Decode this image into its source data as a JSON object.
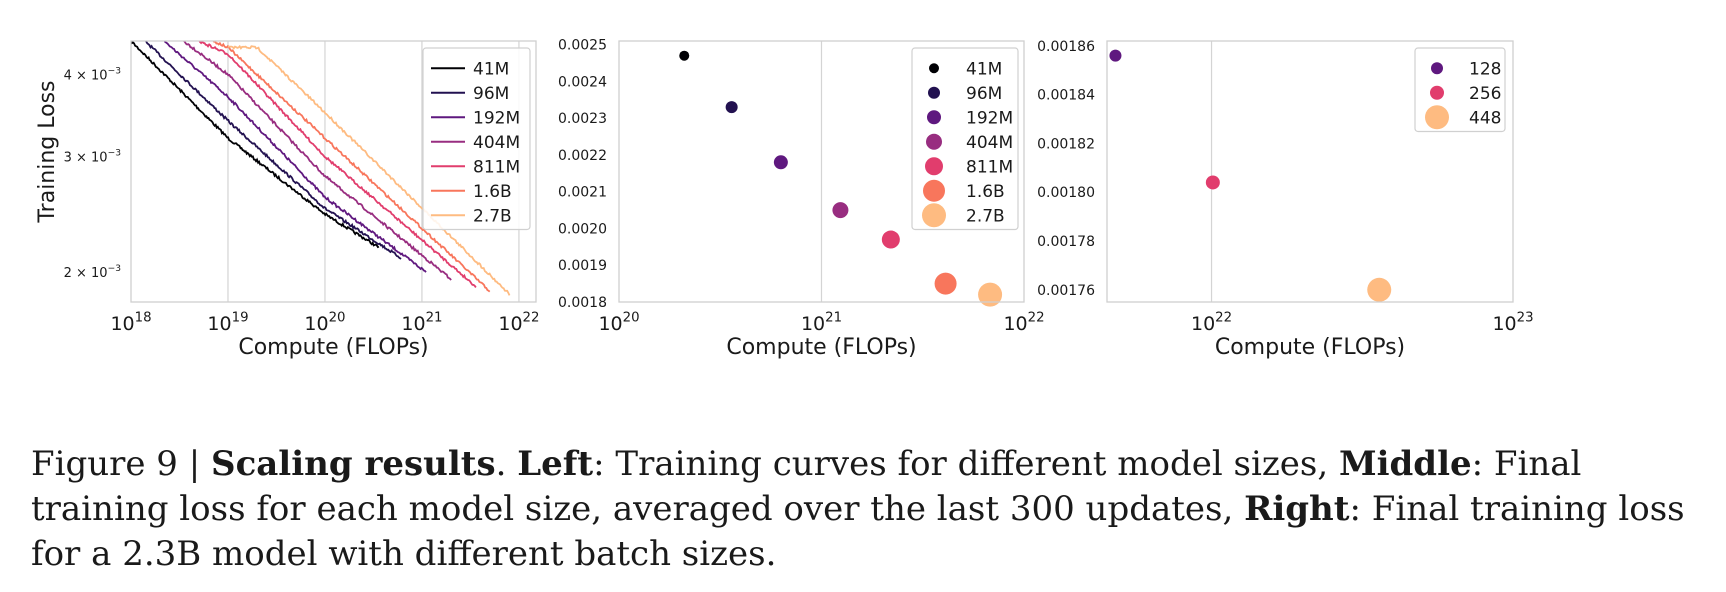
{
  "chart_data": [
    {
      "type": "line",
      "panel": "left",
      "title": "",
      "xlabel": "Compute (FLOPs)",
      "ylabel": "Training Loss",
      "xscale": "log",
      "yscale": "log",
      "xlim": [
        1e+18,
        1.5e+22
      ],
      "ylim": [
        0.0018,
        0.0045
      ],
      "xticks": [
        {
          "label": "10",
          "exp": "18",
          "value": 1e+18
        },
        {
          "label": "10",
          "exp": "19",
          "value": 1e+19
        },
        {
          "label": "10",
          "exp": "20",
          "value": 1e+20
        },
        {
          "label": "10",
          "exp": "21",
          "value": 1e+21
        },
        {
          "label": "10",
          "exp": "22",
          "value": 1e+22
        }
      ],
      "yticks": [
        {
          "label": "4 × 10",
          "exp": "−3",
          "value": 0.004
        },
        {
          "label": "3 × 10",
          "exp": "−3",
          "value": 0.003
        },
        {
          "label": "2 × 10",
          "exp": "−3",
          "value": 0.002
        }
      ],
      "grid": "x",
      "legend_position": "top-right",
      "series": [
        {
          "name": "41M",
          "color": "#000004",
          "x": [
            1e+18,
            1e+19,
            1e+20,
            3.6e+20
          ],
          "y": [
            0.0045,
            0.0032,
            0.00245,
            0.00218
          ]
        },
        {
          "name": "96M",
          "color": "#221150",
          "x": [
            1.4e+18,
            1e+19,
            1e+20,
            6.1e+20
          ],
          "y": [
            0.0045,
            0.0034,
            0.0025,
            0.0021
          ]
        },
        {
          "name": "192M",
          "color": "#5f187f",
          "x": [
            2.2e+18,
            1e+19,
            1e+20,
            1.1e+21
          ],
          "y": [
            0.0045,
            0.0037,
            0.0026,
            0.002
          ]
        },
        {
          "name": "404M",
          "color": "#982d80",
          "x": [
            3.5e+18,
            1e+19,
            1e+20,
            2e+21
          ],
          "y": [
            0.0045,
            0.004,
            0.0028,
            0.00195
          ]
        },
        {
          "name": "811M",
          "color": "#e13d6d",
          "x": [
            5e+18,
            1e+19,
            1e+20,
            3.6e+21
          ],
          "y": [
            0.0045,
            0.0043,
            0.003,
            0.0019
          ]
        },
        {
          "name": "1.6B",
          "color": "#f8765c",
          "x": [
            7e+18,
            1e+19,
            1e+20,
            5e+21
          ],
          "y": [
            0.0045,
            0.0044,
            0.0032,
            0.00187
          ]
        },
        {
          "name": "2.7B",
          "color": "#febb81",
          "x": [
            1e+19,
            2e+19,
            1e+20,
            8e+21
          ],
          "y": [
            0.0044,
            0.0044,
            0.0035,
            0.00185
          ]
        }
      ]
    },
    {
      "type": "scatter",
      "panel": "middle",
      "title": "",
      "xlabel": "Compute (FLOPs)",
      "ylabel": "",
      "xscale": "log",
      "xlim": [
        1e+20,
        1e+22
      ],
      "ylim": [
        0.0018,
        0.00251
      ],
      "xticks": [
        {
          "label": "10",
          "exp": "20",
          "value": 1e+20
        },
        {
          "label": "10",
          "exp": "21",
          "value": 1e+21
        },
        {
          "label": "10",
          "exp": "22",
          "value": 1e+22
        }
      ],
      "yticks": [
        "0.0025",
        "0.0024",
        "0.0023",
        "0.0022",
        "0.0021",
        "0.0020",
        "0.0019",
        "0.0018"
      ],
      "grid": "x",
      "legend_position": "top-right",
      "points": [
        {
          "name": "41M",
          "x": 2.1e+20,
          "y": 0.00247,
          "color": "#000004",
          "size": 5
        },
        {
          "name": "96M",
          "x": 3.6e+20,
          "y": 0.00233,
          "color": "#221150",
          "size": 6
        },
        {
          "name": "192M",
          "x": 6.3e+20,
          "y": 0.00218,
          "color": "#5f187f",
          "size": 7
        },
        {
          "name": "404M",
          "x": 1.24e+21,
          "y": 0.00205,
          "color": "#982d80",
          "size": 8
        },
        {
          "name": "811M",
          "x": 2.2e+21,
          "y": 0.00197,
          "color": "#e13d6d",
          "size": 9
        },
        {
          "name": "1.6B",
          "x": 4.1e+21,
          "y": 0.00185,
          "color": "#f8765c",
          "size": 11
        },
        {
          "name": "2.7B",
          "x": 6.8e+21,
          "y": 0.00182,
          "color": "#febb81",
          "size": 12
        }
      ]
    },
    {
      "type": "scatter",
      "panel": "right",
      "title": "",
      "xlabel": "Compute (FLOPs)",
      "ylabel": "",
      "xscale": "log",
      "xlim": [
        4.5e+21,
        1e+23
      ],
      "ylim": [
        0.001755,
        0.001862
      ],
      "xticks": [
        {
          "label": "10",
          "exp": "22",
          "value": 1e+22
        },
        {
          "label": "10",
          "exp": "23",
          "value": 1e+23
        }
      ],
      "yticks": [
        "0.00186",
        "0.00184",
        "0.00182",
        "0.00180",
        "0.00178",
        "0.00176"
      ],
      "grid": "x",
      "legend_position": "top-right",
      "points": [
        {
          "name": "128",
          "x": 4.8e+21,
          "y": 0.001856,
          "color": "#5f187f",
          "size": 6
        },
        {
          "name": "256",
          "x": 1.01e+22,
          "y": 0.001804,
          "color": "#e13d6d",
          "size": 7
        },
        {
          "name": "448",
          "x": 3.6e+22,
          "y": 0.00176,
          "color": "#febb81",
          "size": 12
        }
      ]
    }
  ],
  "caption": {
    "prefix": "Figure 9 | ",
    "heading": "Scaling results",
    "part1": ". ",
    "left_label": "Left",
    "part2": ": Training curves for different model sizes, ",
    "middle_label": "Middle",
    "part3": ": Final training loss for each model size, averaged over the last 300 updates, ",
    "right_label": "Right",
    "part4": ": Final training loss for a 2.3B model with different batch sizes."
  }
}
